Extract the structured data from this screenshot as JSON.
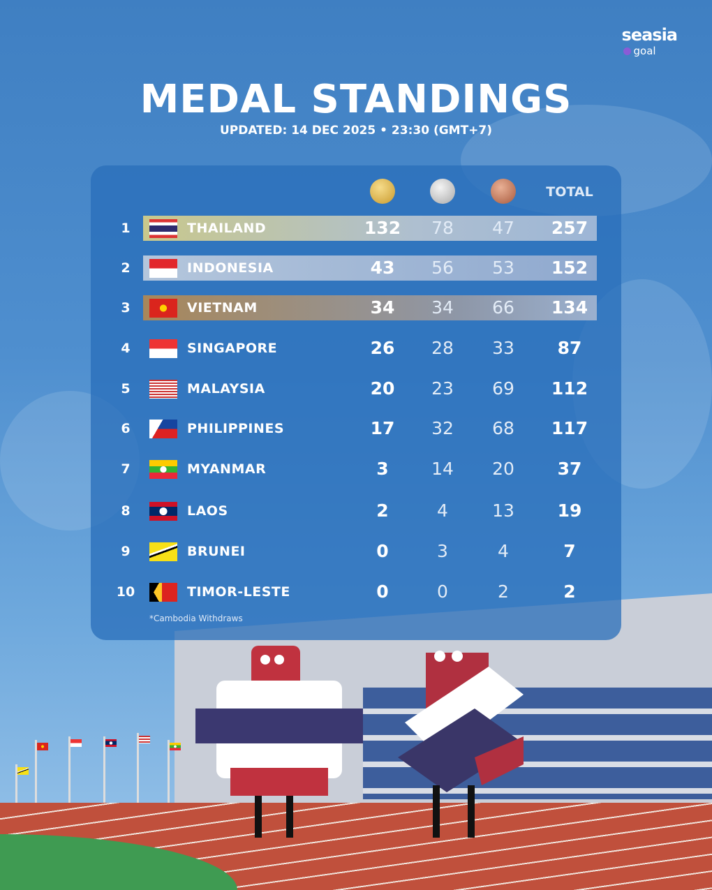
{
  "logo": {
    "brand": "seasia",
    "sub": "goal"
  },
  "header": {
    "title": "MEDAL STANDINGS",
    "subtitle": "UPDATED: 14 DEC 2025 • 23:30 (GMT+7)"
  },
  "table": {
    "columns": [
      "gold",
      "silver",
      "bronze"
    ],
    "total_label": "TOTAL",
    "rows": [
      {
        "rank": "1",
        "country": "THAILAND",
        "gold": "132",
        "silver": "78",
        "bronze": "47",
        "total": "257"
      },
      {
        "rank": "2",
        "country": "INDONESIA",
        "gold": "43",
        "silver": "56",
        "bronze": "53",
        "total": "152"
      },
      {
        "rank": "3",
        "country": "VIETNAM",
        "gold": "34",
        "silver": "34",
        "bronze": "66",
        "total": "134"
      },
      {
        "rank": "4",
        "country": "SINGAPORE",
        "gold": "26",
        "silver": "28",
        "bronze": "33",
        "total": "87"
      },
      {
        "rank": "5",
        "country": "MALAYSIA",
        "gold": "20",
        "silver": "23",
        "bronze": "69",
        "total": "112"
      },
      {
        "rank": "6",
        "country": "PHILIPPINES",
        "gold": "17",
        "silver": "32",
        "bronze": "68",
        "total": "117"
      },
      {
        "rank": "7",
        "country": "MYANMAR",
        "gold": "3",
        "silver": "14",
        "bronze": "20",
        "total": "37"
      },
      {
        "rank": "8",
        "country": "LAOS",
        "gold": "2",
        "silver": "4",
        "bronze": "13",
        "total": "19"
      },
      {
        "rank": "9",
        "country": "BRUNEI",
        "gold": "0",
        "silver": "3",
        "bronze": "4",
        "total": "7"
      },
      {
        "rank": "10",
        "country": "TIMOR-LESTE",
        "gold": "0",
        "silver": "0",
        "bronze": "2",
        "total": "2"
      }
    ],
    "note": "*Cambodia Withdraws"
  },
  "colors": {
    "gold_row": "#c9c28a",
    "silver_row": "#a9bfd9",
    "bronze_row": "#a8875a"
  }
}
